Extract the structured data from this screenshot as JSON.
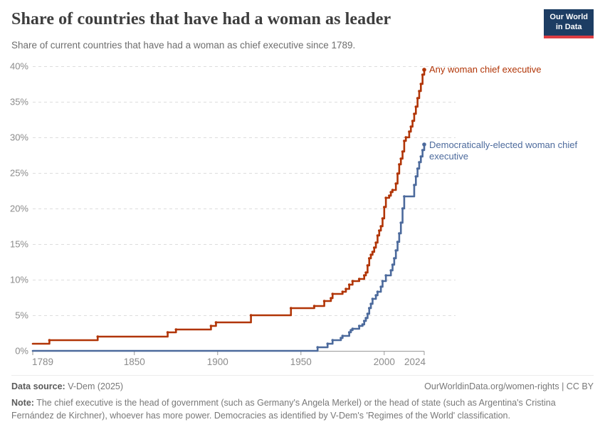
{
  "header": {
    "title": "Share of countries that have had a woman as leader",
    "subtitle": "Share of current countries that have had a woman as chief executive since 1789.",
    "logo": {
      "line1": "Our World",
      "line2": "in Data",
      "bg_color": "#1d3d63",
      "accent_color": "#dc3d43"
    }
  },
  "chart_data": {
    "type": "line",
    "line_style": "step-after",
    "title": "Share of countries that have had a woman as leader",
    "xlabel": "",
    "ylabel": "",
    "x_range": [
      1789,
      2024
    ],
    "x_ticks": [
      1789,
      1850,
      1900,
      1950,
      2000,
      2024
    ],
    "y_range": [
      0,
      40
    ],
    "y_ticks": [
      0,
      5,
      10,
      15,
      20,
      25,
      30,
      35,
      40
    ],
    "y_tick_suffix": "%",
    "grid": "horizontal dashed",
    "legend_position": "end-of-line labels",
    "axis_color": "#999999",
    "grid_color": "#dddddd",
    "tick_label_color": "#8b8b8b",
    "series": [
      {
        "name": "Any woman chief executive",
        "color": "#b13507",
        "points": [
          [
            1789,
            1.0
          ],
          [
            1799,
            1.5
          ],
          [
            1828,
            2.0
          ],
          [
            1870,
            2.6
          ],
          [
            1875,
            3.0
          ],
          [
            1896,
            3.5
          ],
          [
            1899,
            4.0
          ],
          [
            1920,
            5.0
          ],
          [
            1944,
            6.0
          ],
          [
            1958,
            6.3
          ],
          [
            1964,
            7.0
          ],
          [
            1968,
            7.4
          ],
          [
            1969,
            8.0
          ],
          [
            1975,
            8.3
          ],
          [
            1977,
            8.7
          ],
          [
            1979,
            9.3
          ],
          [
            1981,
            9.8
          ],
          [
            1985,
            10.1
          ],
          [
            1988,
            10.6
          ],
          [
            1989,
            11.0
          ],
          [
            1990,
            12.0
          ],
          [
            1991,
            13.0
          ],
          [
            1992,
            13.5
          ],
          [
            1993,
            13.9
          ],
          [
            1994,
            14.5
          ],
          [
            1995,
            15.2
          ],
          [
            1996,
            16.2
          ],
          [
            1997,
            16.9
          ],
          [
            1998,
            17.5
          ],
          [
            1999,
            18.6
          ],
          [
            2000,
            20.2
          ],
          [
            2001,
            21.5
          ],
          [
            2003,
            21.8
          ],
          [
            2004,
            22.3
          ],
          [
            2005,
            22.6
          ],
          [
            2007,
            23.5
          ],
          [
            2008,
            24.9
          ],
          [
            2009,
            26.2
          ],
          [
            2010,
            27.0
          ],
          [
            2011,
            28.0
          ],
          [
            2012,
            29.5
          ],
          [
            2013,
            30.0
          ],
          [
            2015,
            30.8
          ],
          [
            2016,
            31.5
          ],
          [
            2017,
            32.3
          ],
          [
            2018,
            33.3
          ],
          [
            2019,
            34.3
          ],
          [
            2020,
            35.5
          ],
          [
            2021,
            36.5
          ],
          [
            2022,
            37.5
          ],
          [
            2023,
            38.8
          ],
          [
            2024,
            39.5
          ]
        ]
      },
      {
        "name": "Democratically-elected woman chief executive",
        "color": "#4c6a9c",
        "points": [
          [
            1789,
            0.0
          ],
          [
            1960,
            0.5
          ],
          [
            1966,
            1.0
          ],
          [
            1969,
            1.5
          ],
          [
            1974,
            1.8
          ],
          [
            1975,
            2.1
          ],
          [
            1979,
            2.6
          ],
          [
            1980,
            2.9
          ],
          [
            1981,
            3.1
          ],
          [
            1985,
            3.5
          ],
          [
            1987,
            3.7
          ],
          [
            1988,
            4.2
          ],
          [
            1989,
            4.6
          ],
          [
            1990,
            5.2
          ],
          [
            1991,
            6.0
          ],
          [
            1992,
            6.6
          ],
          [
            1993,
            7.3
          ],
          [
            1995,
            7.8
          ],
          [
            1996,
            8.3
          ],
          [
            1998,
            9.0
          ],
          [
            1999,
            9.8
          ],
          [
            2001,
            10.6
          ],
          [
            2004,
            11.3
          ],
          [
            2005,
            12.1
          ],
          [
            2006,
            13.0
          ],
          [
            2007,
            14.1
          ],
          [
            2008,
            15.3
          ],
          [
            2009,
            16.5
          ],
          [
            2010,
            18.0
          ],
          [
            2011,
            20.0
          ],
          [
            2012,
            21.7
          ],
          [
            2018,
            23.3
          ],
          [
            2019,
            24.5
          ],
          [
            2020,
            25.6
          ],
          [
            2021,
            26.5
          ],
          [
            2022,
            27.3
          ],
          [
            2023,
            28.2
          ],
          [
            2024,
            29.0
          ]
        ]
      }
    ]
  },
  "footer": {
    "datasource_label": "Data source:",
    "datasource_value": " V-Dem (2025)",
    "link": "OurWorldinData.org/women-rights | CC BY",
    "note_label": "Note:",
    "note_text": " The chief executive is the head of government (such as Germany's Angela Merkel) or the head of state (such as Argentina's Cristina Fernández de Kirchner), whoever has more power. Democracies as identified by V-Dem's 'Regimes of the World' classification."
  }
}
